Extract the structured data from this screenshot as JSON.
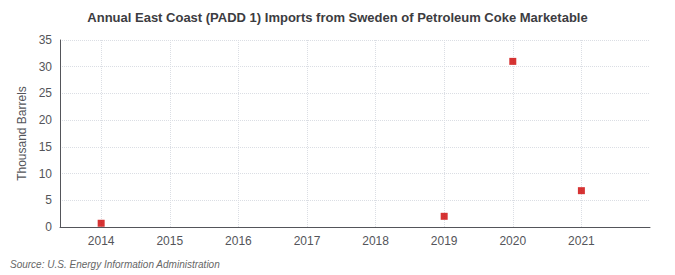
{
  "chart_data": {
    "type": "scatter",
    "title": "Annual East Coast (PADD 1) Imports from Sweden of Petroleum Coke Marketable",
    "ylabel": "Thousand Barrels",
    "source": "Source: U.S. Energy Information Administration",
    "x": [
      2014,
      2019,
      2020,
      2021
    ],
    "values": [
      0.7,
      2.0,
      31.0,
      6.8
    ],
    "color": "#cc0000",
    "marker": "square",
    "xlim": [
      2013.4,
      2022.0
    ],
    "ylim": [
      0,
      35
    ],
    "xticks": [
      2014,
      2015,
      2016,
      2017,
      2018,
      2019,
      2020,
      2021
    ],
    "yticks": [
      0,
      5,
      10,
      15,
      20,
      25,
      30,
      35
    ],
    "grid": true
  }
}
